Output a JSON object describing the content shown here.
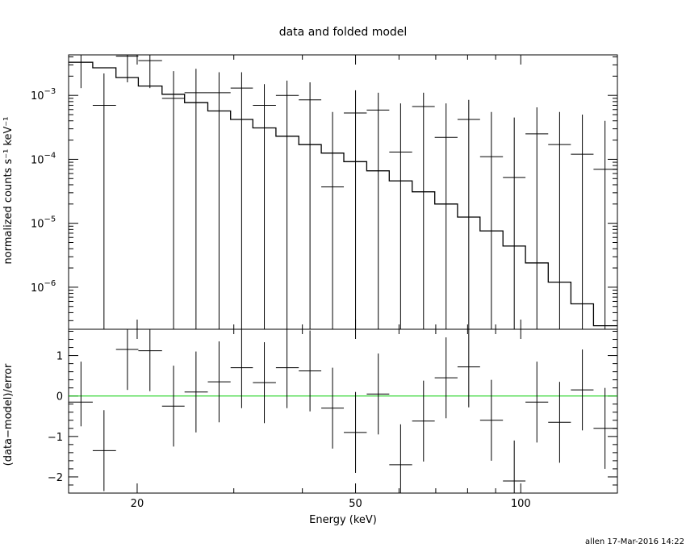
{
  "chart_data": [
    {
      "panel": "top",
      "type": "line",
      "title": "data and folded model",
      "ylabel": "normalized counts s⁻¹ keV⁻¹",
      "xlabel": "",
      "xscale": "log",
      "yscale": "log",
      "xlim": [
        15,
        150
      ],
      "ylim": [
        2.2e-07,
        0.0043
      ],
      "x_ticks_labeled": [
        20,
        50,
        100
      ],
      "y_tick_labels": [
        {
          "value": 0.001,
          "mantissa": "10",
          "exp": "−3"
        },
        {
          "value": 0.0001,
          "mantissa": "10",
          "exp": "−4"
        },
        {
          "value": 1e-05,
          "mantissa": "10",
          "exp": "−5"
        },
        {
          "value": 1e-06,
          "mantissa": "10",
          "exp": "−6"
        }
      ],
      "series": [
        {
          "type": "errorbar",
          "points": [
            {
              "x": 15.8,
              "xlo": 15.0,
              "xhi": 16.6,
              "y": 0.0033,
              "ylo": 0.0013,
              "yhi": 0.0043
            },
            {
              "x": 17.4,
              "xlo": 16.6,
              "xhi": 18.3,
              "y": 0.0007,
              "ylo": 2.2e-07,
              "yhi": 0.0022
            },
            {
              "x": 19.2,
              "xlo": 18.3,
              "xhi": 20.1,
              "y": 0.0041,
              "ylo": 0.0016,
              "yhi": 0.0043
            },
            {
              "x": 21.1,
              "xlo": 20.1,
              "xhi": 22.2,
              "y": 0.0035,
              "ylo": 0.0013,
              "yhi": 0.0043
            },
            {
              "x": 23.3,
              "xlo": 22.2,
              "xhi": 24.4,
              "y": 0.0009,
              "ylo": 2.2e-07,
              "yhi": 0.0024
            },
            {
              "x": 25.6,
              "xlo": 24.4,
              "xhi": 26.9,
              "y": 0.0011,
              "ylo": 2.2e-07,
              "yhi": 0.0026
            },
            {
              "x": 28.2,
              "xlo": 26.9,
              "xhi": 29.6,
              "y": 0.0011,
              "ylo": 2.2e-07,
              "yhi": 0.0023
            },
            {
              "x": 31.0,
              "xlo": 29.6,
              "xhi": 32.5,
              "y": 0.0013,
              "ylo": 2.2e-07,
              "yhi": 0.0023
            },
            {
              "x": 34.1,
              "xlo": 32.5,
              "xhi": 35.8,
              "y": 0.0007,
              "ylo": 2.2e-07,
              "yhi": 0.0015
            },
            {
              "x": 37.5,
              "xlo": 35.8,
              "xhi": 39.4,
              "y": 0.001,
              "ylo": 2.2e-07,
              "yhi": 0.0017
            },
            {
              "x": 41.3,
              "xlo": 39.4,
              "xhi": 43.3,
              "y": 0.00085,
              "ylo": 2.2e-07,
              "yhi": 0.0016
            },
            {
              "x": 45.4,
              "xlo": 43.3,
              "xhi": 47.6,
              "y": 3.7e-05,
              "ylo": 2.2e-07,
              "yhi": 0.00055
            },
            {
              "x": 50.0,
              "xlo": 47.6,
              "xhi": 52.4,
              "y": 0.00053,
              "ylo": 2.2e-07,
              "yhi": 0.0012
            },
            {
              "x": 55.0,
              "xlo": 52.4,
              "xhi": 57.6,
              "y": 0.00059,
              "ylo": 2.2e-07,
              "yhi": 0.0011
            },
            {
              "x": 60.4,
              "xlo": 57.6,
              "xhi": 63.4,
              "y": 0.00013,
              "ylo": 2.2e-07,
              "yhi": 0.00075
            },
            {
              "x": 66.5,
              "xlo": 63.4,
              "xhi": 69.7,
              "y": 0.00067,
              "ylo": 2.2e-07,
              "yhi": 0.0011
            },
            {
              "x": 73.1,
              "xlo": 69.7,
              "xhi": 76.7,
              "y": 0.00022,
              "ylo": 2.2e-07,
              "yhi": 0.00075
            },
            {
              "x": 80.4,
              "xlo": 76.7,
              "xhi": 84.3,
              "y": 0.00042,
              "ylo": 2.2e-07,
              "yhi": 0.00085
            },
            {
              "x": 88.4,
              "xlo": 84.3,
              "xhi": 92.8,
              "y": 0.00011,
              "ylo": 2.2e-07,
              "yhi": 0.00055
            },
            {
              "x": 97.3,
              "xlo": 92.8,
              "xhi": 102.0,
              "y": 5.2e-05,
              "ylo": 2.2e-07,
              "yhi": 0.00045
            },
            {
              "x": 107.0,
              "xlo": 102.0,
              "xhi": 112.2,
              "y": 0.00025,
              "ylo": 2.2e-07,
              "yhi": 0.00065
            },
            {
              "x": 117.7,
              "xlo": 112.2,
              "xhi": 123.4,
              "y": 0.00017,
              "ylo": 2.2e-07,
              "yhi": 0.00055
            },
            {
              "x": 129.5,
              "xlo": 123.4,
              "xhi": 135.7,
              "y": 0.00012,
              "ylo": 2.2e-07,
              "yhi": 0.0005
            },
            {
              "x": 142.4,
              "xlo": 135.7,
              "xhi": 150.0,
              "y": 7e-05,
              "ylo": 2.2e-07,
              "yhi": 0.0004
            }
          ]
        },
        {
          "type": "step",
          "edges_x": [
            15.0,
            16.6,
            18.3,
            20.1,
            22.2,
            24.4,
            26.9,
            29.6,
            32.5,
            35.8,
            39.4,
            43.3,
            47.6,
            52.4,
            57.6,
            63.4,
            69.7,
            76.7,
            84.3,
            92.8,
            102.0,
            112.2,
            123.4,
            135.7,
            150.0
          ],
          "values": [
            0.0033,
            0.0027,
            0.0019,
            0.0014,
            0.00104,
            0.00077,
            0.00057,
            0.00042,
            0.00031,
            0.00023,
            0.00017,
            0.000125,
            9.2e-05,
            6.6e-05,
            4.6e-05,
            3.1e-05,
            2e-05,
            1.25e-05,
            7.6e-06,
            4.4e-06,
            2.4e-06,
            1.2e-06,
            5.5e-07,
            2.5e-07
          ]
        }
      ]
    },
    {
      "panel": "bottom",
      "type": "scatter",
      "title": "",
      "xlabel": "Energy (keV)",
      "ylabel": "(data−model)/error",
      "xscale": "log",
      "yscale": "linear",
      "xlim": [
        15,
        150
      ],
      "ylim": [
        -2.4,
        1.65
      ],
      "x_ticks_labeled": [
        20,
        50,
        100
      ],
      "y_ticks_labeled": [
        1,
        0,
        -1,
        -2
      ],
      "zero_line_color": "#00cc00",
      "points": [
        {
          "x": 15.8,
          "xlo": 15.0,
          "xhi": 16.6,
          "y": -0.15,
          "ylo": -0.75,
          "yhi": 0.85
        },
        {
          "x": 17.4,
          "xlo": 16.6,
          "xhi": 18.3,
          "y": -1.35,
          "ylo": -2.35,
          "yhi": -0.35
        },
        {
          "x": 19.2,
          "xlo": 18.3,
          "xhi": 20.1,
          "y": 1.15,
          "ylo": 0.15,
          "yhi": 1.65
        },
        {
          "x": 21.1,
          "xlo": 20.1,
          "xhi": 22.2,
          "y": 1.12,
          "ylo": 0.12,
          "yhi": 1.65
        },
        {
          "x": 23.3,
          "xlo": 22.2,
          "xhi": 24.4,
          "y": -0.25,
          "ylo": -1.25,
          "yhi": 0.75
        },
        {
          "x": 25.6,
          "xlo": 24.4,
          "xhi": 26.9,
          "y": 0.1,
          "ylo": -0.9,
          "yhi": 1.1
        },
        {
          "x": 28.2,
          "xlo": 26.9,
          "xhi": 29.6,
          "y": 0.35,
          "ylo": -0.65,
          "yhi": 1.35
        },
        {
          "x": 31.0,
          "xlo": 29.6,
          "xhi": 32.5,
          "y": 0.7,
          "ylo": -0.3,
          "yhi": 1.65
        },
        {
          "x": 34.1,
          "xlo": 32.5,
          "xhi": 35.8,
          "y": 0.33,
          "ylo": -0.67,
          "yhi": 1.33
        },
        {
          "x": 37.5,
          "xlo": 35.8,
          "xhi": 39.4,
          "y": 0.7,
          "ylo": -0.3,
          "yhi": 1.65
        },
        {
          "x": 41.3,
          "xlo": 39.4,
          "xhi": 43.3,
          "y": 0.62,
          "ylo": -0.38,
          "yhi": 1.62
        },
        {
          "x": 45.4,
          "xlo": 43.3,
          "xhi": 47.6,
          "y": -0.3,
          "ylo": -1.3,
          "yhi": 0.7
        },
        {
          "x": 50.0,
          "xlo": 47.6,
          "xhi": 52.4,
          "y": -0.9,
          "ylo": -1.9,
          "yhi": 0.1
        },
        {
          "x": 55.0,
          "xlo": 52.4,
          "xhi": 57.6,
          "y": 0.05,
          "ylo": -0.95,
          "yhi": 1.05
        },
        {
          "x": 60.4,
          "xlo": 57.6,
          "xhi": 63.4,
          "y": -1.7,
          "ylo": -2.4,
          "yhi": -0.7
        },
        {
          "x": 66.5,
          "xlo": 63.4,
          "xhi": 69.7,
          "y": -0.62,
          "ylo": -1.62,
          "yhi": 0.38
        },
        {
          "x": 73.1,
          "xlo": 69.7,
          "xhi": 76.7,
          "y": 0.45,
          "ylo": -0.55,
          "yhi": 1.45
        },
        {
          "x": 80.4,
          "xlo": 76.7,
          "xhi": 84.3,
          "y": 0.72,
          "ylo": -0.28,
          "yhi": 1.65
        },
        {
          "x": 88.4,
          "xlo": 84.3,
          "xhi": 92.8,
          "y": -0.6,
          "ylo": -1.6,
          "yhi": 0.4
        },
        {
          "x": 97.3,
          "xlo": 92.8,
          "xhi": 102.0,
          "y": -2.1,
          "ylo": -2.4,
          "yhi": -1.1
        },
        {
          "x": 107.0,
          "xlo": 102.0,
          "xhi": 112.2,
          "y": -0.15,
          "ylo": -1.15,
          "yhi": 0.85
        },
        {
          "x": 117.7,
          "xlo": 112.2,
          "xhi": 123.4,
          "y": -0.65,
          "ylo": -1.65,
          "yhi": 0.35
        },
        {
          "x": 129.5,
          "xlo": 123.4,
          "xhi": 135.7,
          "y": 0.15,
          "ylo": -0.85,
          "yhi": 1.15
        },
        {
          "x": 142.4,
          "xlo": 135.7,
          "xhi": 150.0,
          "y": -0.8,
          "ylo": -1.8,
          "yhi": 0.2
        }
      ]
    }
  ],
  "colors": {
    "axes": "#000000",
    "data": "#000000",
    "model": "#000000",
    "zero_line": "#00cc00"
  },
  "footer": {
    "stamp": "allen 17-Mar-2016 14:22"
  }
}
